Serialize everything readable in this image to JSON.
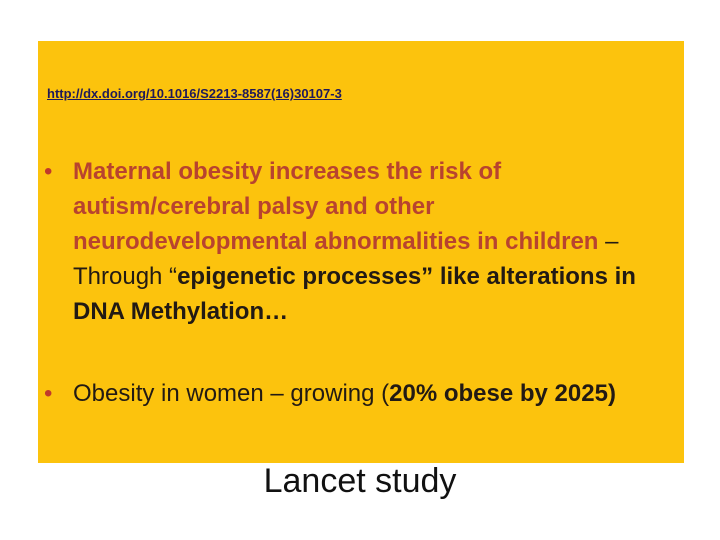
{
  "slide": {
    "doi_link": "http://dx.doi.org/10.1016/S2213-8587(16)30107-3",
    "bullet1": {
      "marker": "•",
      "part1": "Maternal obesity increases the risk of autism/cerebral palsy and other neurodevelopmental abnormalities in children",
      "part2": " – Through “",
      "part3": "epigenetic processes” like alterations in DNA Methylation…"
    },
    "bullet2": {
      "marker": "•",
      "part1": "Obesity in women – growing (",
      "part2": "20% obese by 2025)"
    },
    "caption": "Lancet study",
    "colors": {
      "panel_background": "#fcc30d",
      "highlight_text": "#b8432f",
      "body_text": "#221a14",
      "link_text": "#1f1a5a"
    }
  }
}
